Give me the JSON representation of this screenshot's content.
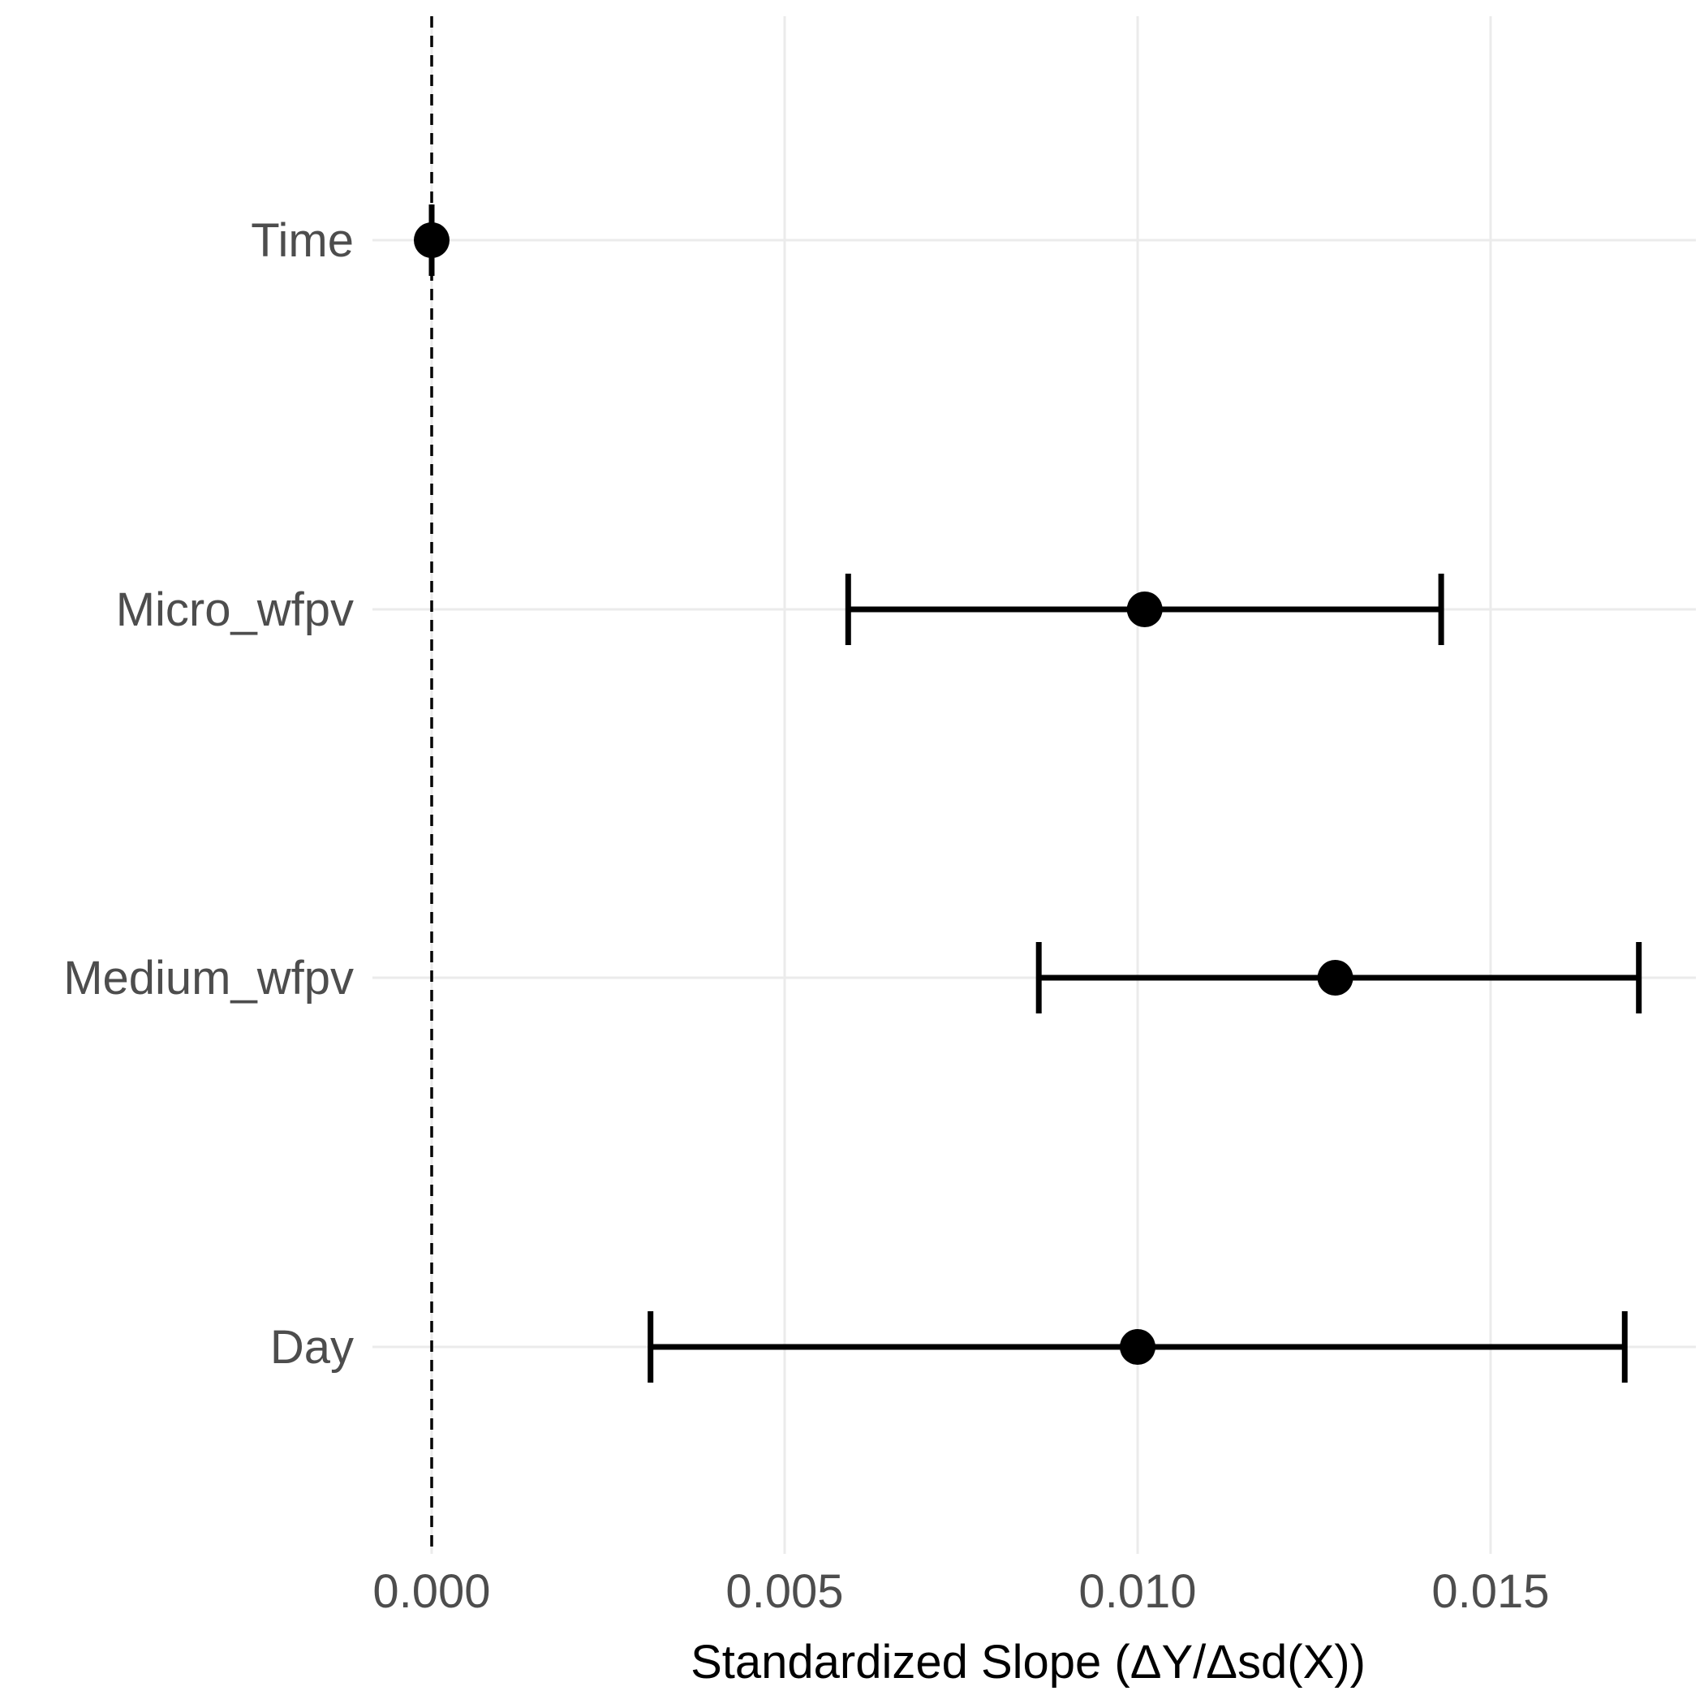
{
  "chart_data": {
    "type": "forest",
    "title": "",
    "xlabel": "Standardized Slope (ΔY/Δsd(X))",
    "ylabel": "",
    "xlim": [
      -0.00023,
      0.0179
    ],
    "x_ticks": [
      0.0,
      0.005,
      0.01,
      0.015
    ],
    "x_tick_labels": [
      "0.000",
      "0.005",
      "0.010",
      "0.015"
    ],
    "reference_line": {
      "x": 0.0,
      "style": "dashed"
    },
    "grid": true,
    "legend": "none",
    "colors": {
      "point": "#000000",
      "errorbar": "#000000",
      "grid": "#EBEBEB",
      "tick_text": "#4D4D4D",
      "axis_title": "#000000"
    },
    "rows": [
      {
        "label": "Time",
        "estimate": 0.0,
        "lower": 0.0,
        "upper": 0.0
      },
      {
        "label": "Micro_wfpv",
        "estimate": 0.0101,
        "lower": 0.0059,
        "upper": 0.0143
      },
      {
        "label": "Medium_wfpv",
        "estimate": 0.0128,
        "lower": 0.0086,
        "upper": 0.0171
      },
      {
        "label": "Day",
        "estimate": 0.01,
        "lower": 0.0031,
        "upper": 0.0169
      }
    ]
  }
}
